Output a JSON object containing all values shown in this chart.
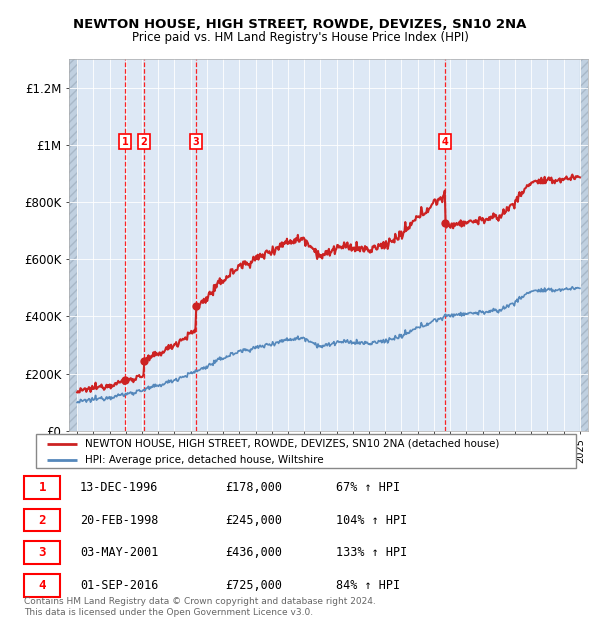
{
  "title": "NEWTON HOUSE, HIGH STREET, ROWDE, DEVIZES, SN10 2NA",
  "subtitle": "Price paid vs. HM Land Registry's House Price Index (HPI)",
  "transactions": [
    {
      "num": 1,
      "date": "1996-12-13",
      "price": 178000,
      "year": 1996.96,
      "label": "13-DEC-1996",
      "price_label": "£178,000",
      "pct": "67% ↑ HPI"
    },
    {
      "num": 2,
      "date": "1998-02-20",
      "price": 245000,
      "year": 1998.13,
      "label": "20-FEB-1998",
      "price_label": "£245,000",
      "pct": "104% ↑ HPI"
    },
    {
      "num": 3,
      "date": "2001-05-03",
      "price": 436000,
      "year": 2001.34,
      "label": "03-MAY-2001",
      "price_label": "£436,000",
      "pct": "133% ↑ HPI"
    },
    {
      "num": 4,
      "date": "2016-09-01",
      "price": 725000,
      "year": 2016.67,
      "label": "01-SEP-2016",
      "price_label": "£725,000",
      "pct": "84% ↑ HPI"
    }
  ],
  "hpi_color": "#5588bb",
  "house_color": "#cc2222",
  "background_plot": "#dde8f5",
  "ylim": [
    0,
    1300000
  ],
  "yticks": [
    0,
    200000,
    400000,
    600000,
    800000,
    1000000,
    1200000
  ],
  "ytick_labels": [
    "£0",
    "£200K",
    "£400K",
    "£600K",
    "£800K",
    "£1M",
    "£1.2M"
  ],
  "legend_house": "NEWTON HOUSE, HIGH STREET, ROWDE, DEVIZES, SN10 2NA (detached house)",
  "legend_hpi": "HPI: Average price, detached house, Wiltshire",
  "footer": "Contains HM Land Registry data © Crown copyright and database right 2024.\nThis data is licensed under the Open Government Licence v3.0.",
  "table_rows": [
    [
      "1",
      "13-DEC-1996",
      "£178,000",
      "67% ↑ HPI"
    ],
    [
      "2",
      "20-FEB-1998",
      "£245,000",
      "104% ↑ HPI"
    ],
    [
      "3",
      "03-MAY-2001",
      "£436,000",
      "133% ↑ HPI"
    ],
    [
      "4",
      "01-SEP-2016",
      "£725,000",
      "84% ↑ HPI"
    ]
  ],
  "x_min": 1993.5,
  "x_max": 2025.5,
  "hatch_left_end": 1994.0,
  "hatch_right_start": 2025.0
}
